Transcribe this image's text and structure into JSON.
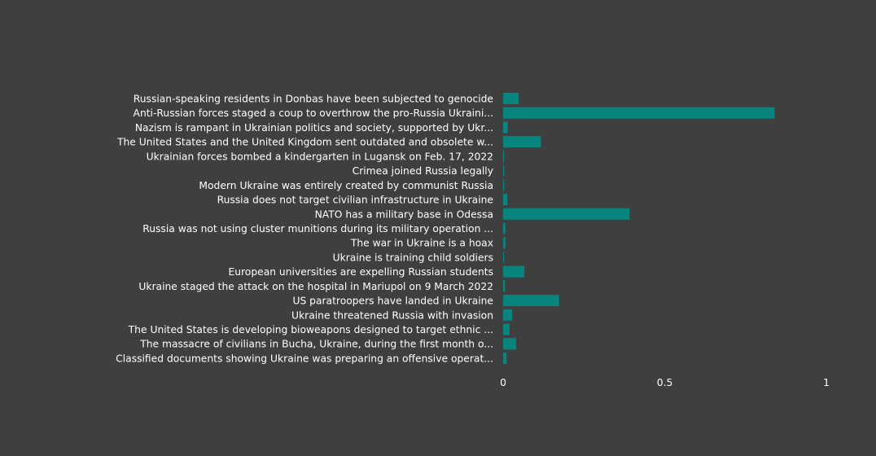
{
  "chart_data": {
    "type": "bar",
    "orientation": "horizontal",
    "categories": [
      "Russian-speaking residents in Donbas have been subjected to genocide",
      "Anti-Russian forces staged a coup to overthrow the pro-Russia Ukraini...",
      "Nazism is rampant in Ukrainian politics and society, supported by Ukr...",
      "The United States and the United Kingdom sent outdated and obsolete w...",
      "Ukrainian forces bombed a kindergarten in Lugansk on Feb. 17, 2022",
      "Crimea joined Russia legally",
      "Modern Ukraine was entirely created by communist Russia",
      "Russia does not target civilian infrastructure in Ukraine",
      "NATO has a military base in Odessa",
      "Russia was not using cluster munitions during its military operation ...",
      "The war in Ukraine is a hoax",
      "Ukraine is training child soldiers",
      "European universities are expelling Russian students",
      "Ukraine staged the attack on the hospital in Mariupol on 9 March 2022",
      "US paratroopers have landed in Ukraine",
      "Ukraine threatened Russia with invasion",
      "The United States is developing bioweapons designed to target ethnic ...",
      "The massacre of civilians in Bucha, Ukraine, during the first month o...",
      "Classified documents showing Ukraine was preparing an offensive operat..."
    ],
    "values": [
      0.048,
      0.84,
      0.014,
      0.117,
      0.003,
      0.003,
      0.003,
      0.013,
      0.391,
      0.007,
      0.007,
      0.002,
      0.066,
      0.006,
      0.173,
      0.028,
      0.02,
      0.04,
      0.011
    ],
    "xlim": [
      0,
      1
    ],
    "xticks": [
      0,
      0.5,
      1
    ],
    "xtick_labels": [
      "0",
      "0.5",
      "1"
    ],
    "title": "",
    "xlabel": "",
    "ylabel": "",
    "grid": false,
    "colors": {
      "background": "#3f3f3f",
      "bar": "#0a847e",
      "text": "#ffffff"
    }
  }
}
